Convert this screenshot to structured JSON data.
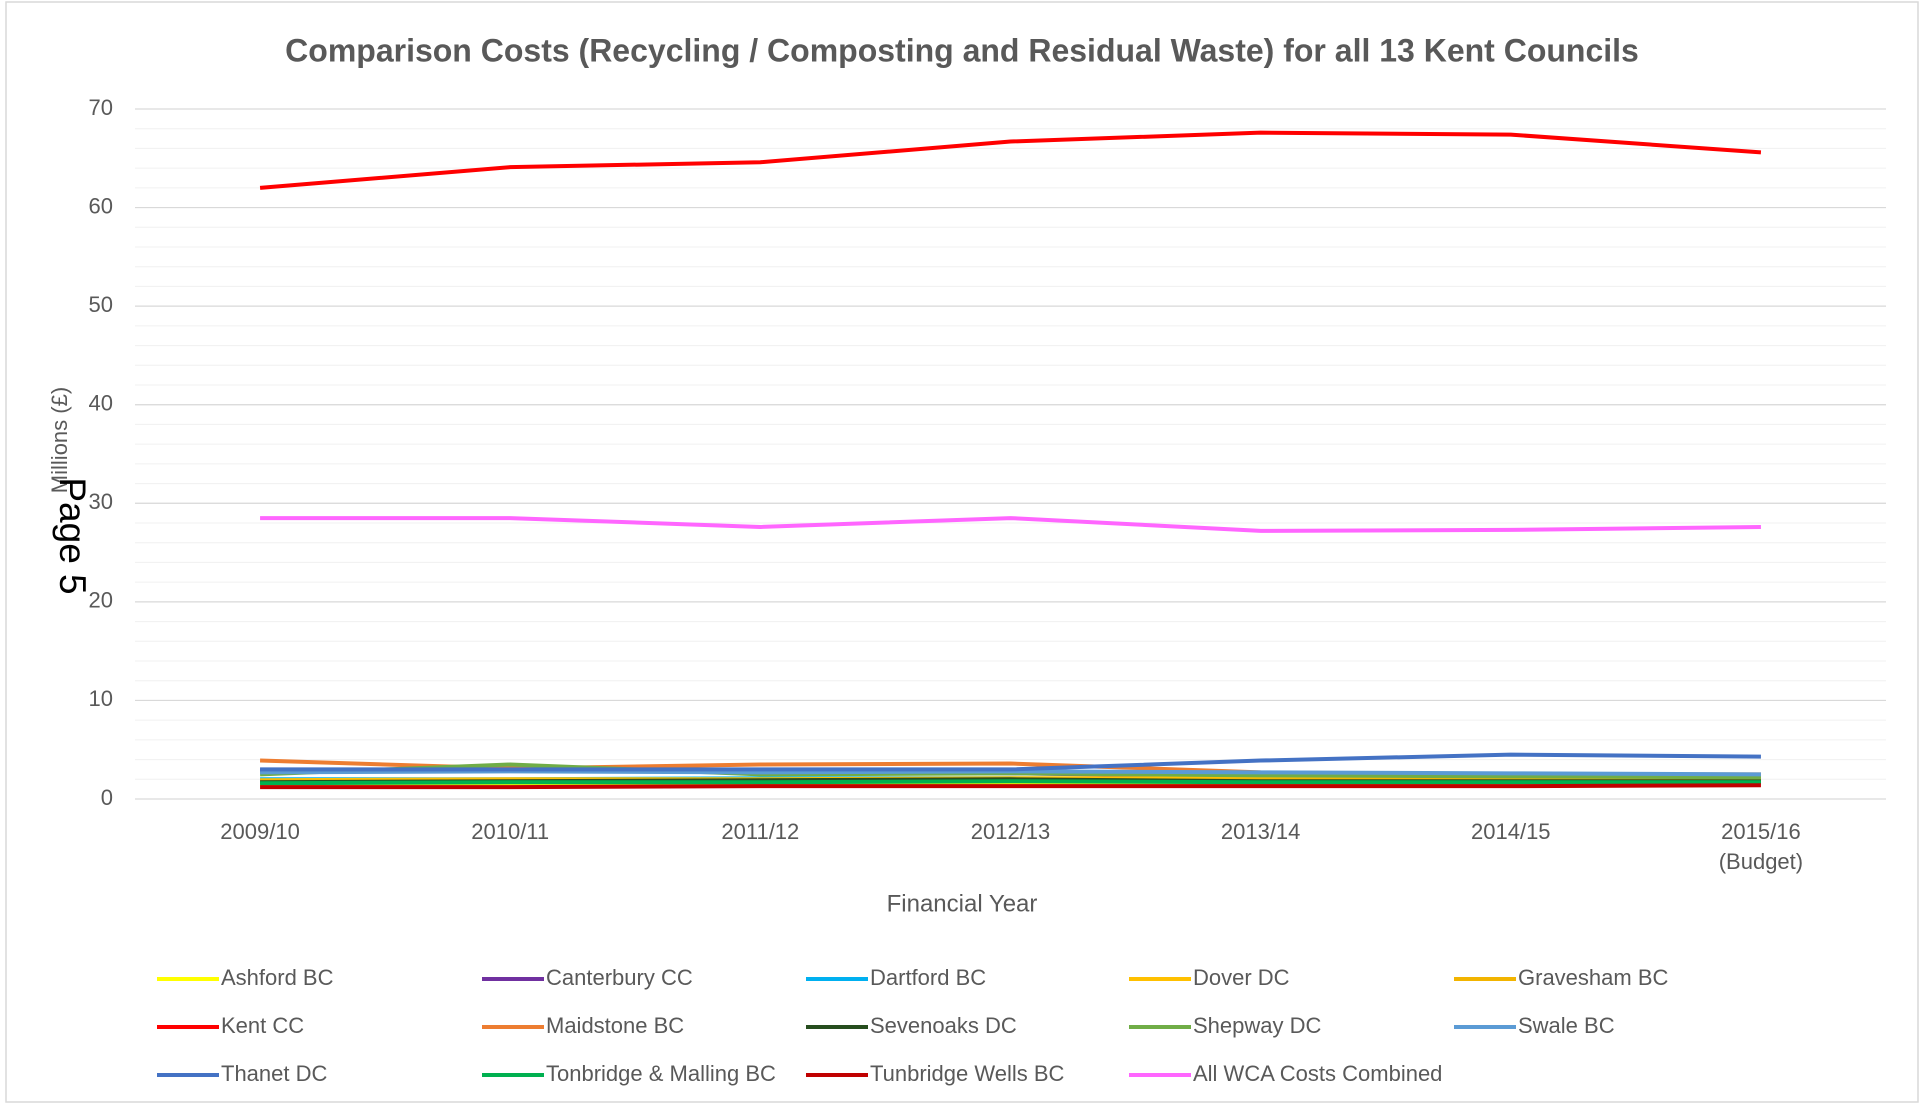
{
  "chart_data": {
    "type": "line",
    "title": "Comparison Costs (Recycling / Composting and Residual Waste) for all 13 Kent Councils",
    "x_label": "Financial Year",
    "y_label": "Millions (£)",
    "page_label": "Page 5",
    "categories": [
      "2009/10",
      "2010/11",
      "2011/12",
      "2012/13",
      "2013/14",
      "2014/15",
      "2015/16 (Budget)"
    ],
    "ylim": [
      0,
      70
    ],
    "yticks": [
      0,
      10,
      20,
      30,
      40,
      50,
      60,
      70
    ],
    "grid": true,
    "minor_grid_step": 2,
    "legend": "bottom",
    "series": [
      {
        "name": "Ashford BC",
        "color": "#ffff00",
        "values": [
          1.4,
          1.4,
          1.4,
          1.5,
          1.6,
          1.7,
          1.8
        ]
      },
      {
        "name": "Canterbury CC",
        "color": "#7030a0",
        "values": [
          2.9,
          3.0,
          2.8,
          2.6,
          2.3,
          2.0,
          1.9
        ]
      },
      {
        "name": "Dartford BC",
        "color": "#00b0f0",
        "values": [
          2.0,
          2.0,
          2.1,
          2.1,
          2.0,
          2.0,
          2.0
        ]
      },
      {
        "name": "Dover DC",
        "color": "#ffc000",
        "values": [
          1.9,
          2.0,
          2.0,
          2.1,
          2.1,
          2.1,
          2.1
        ]
      },
      {
        "name": "Gravesham BC",
        "color": "#f2b400",
        "values": [
          1.8,
          1.8,
          1.8,
          1.9,
          1.9,
          1.9,
          1.9
        ]
      },
      {
        "name": "Kent CC",
        "color": "#ff0000",
        "values": [
          62.0,
          64.1,
          64.6,
          66.7,
          67.6,
          67.4,
          65.6
        ]
      },
      {
        "name": "Maidstone BC",
        "color": "#ed7d31",
        "values": [
          3.9,
          3.1,
          3.5,
          3.6,
          2.7,
          2.5,
          2.5
        ]
      },
      {
        "name": "Sevenoaks DC",
        "color": "#264d1e",
        "values": [
          1.7,
          1.8,
          1.9,
          2.0,
          1.8,
          1.8,
          1.8
        ]
      },
      {
        "name": "Shepway DC",
        "color": "#70ad47",
        "values": [
          2.5,
          3.5,
          2.5,
          2.6,
          2.4,
          2.3,
          2.2
        ]
      },
      {
        "name": "Swale BC",
        "color": "#5b9bd5",
        "values": [
          2.7,
          2.8,
          2.7,
          2.8,
          2.7,
          2.6,
          2.5
        ]
      },
      {
        "name": "Thanet DC",
        "color": "#4472c4",
        "values": [
          3.0,
          3.0,
          3.0,
          3.0,
          3.9,
          4.5,
          4.3
        ]
      },
      {
        "name": "Tonbridge & Malling BC",
        "color": "#00b050",
        "values": [
          1.6,
          1.7,
          1.7,
          1.8,
          1.7,
          1.7,
          1.7
        ]
      },
      {
        "name": "Tunbridge Wells BC",
        "color": "#c00000",
        "values": [
          1.2,
          1.2,
          1.3,
          1.3,
          1.3,
          1.3,
          1.4
        ]
      },
      {
        "name": "All WCA Costs Combined",
        "color": "#ff66ff",
        "values": [
          28.5,
          28.5,
          27.6,
          28.5,
          27.2,
          27.3,
          27.6
        ]
      }
    ]
  }
}
